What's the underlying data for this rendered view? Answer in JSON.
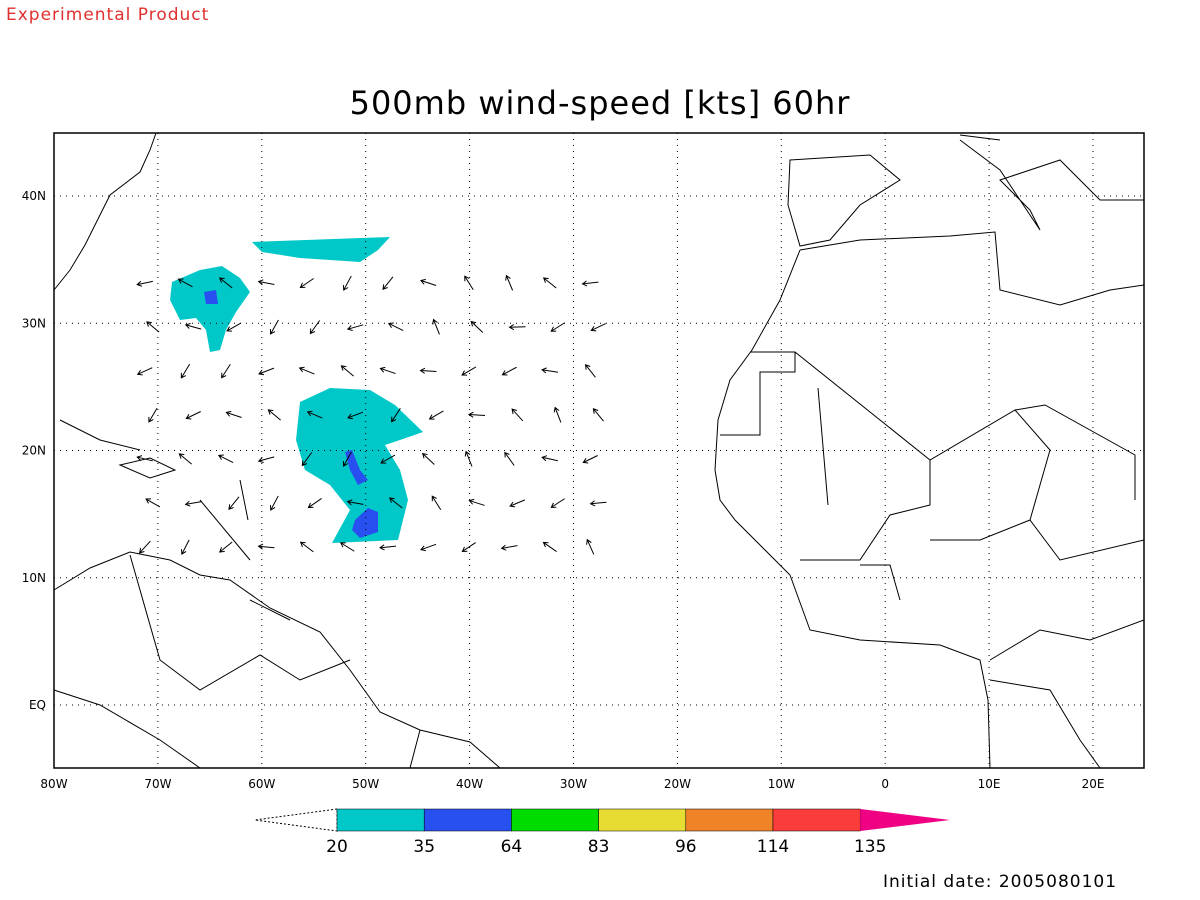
{
  "header": {
    "note": "Experimental Product"
  },
  "title": "500mb wind-speed [kts] 60hr",
  "axes": {
    "x_labels": [
      "80W",
      "70W",
      "60W",
      "50W",
      "40W",
      "30W",
      "20W",
      "10W",
      "0",
      "10E",
      "20E"
    ],
    "y_labels": [
      "40N",
      "30N",
      "20N",
      "10N",
      "EQ"
    ]
  },
  "colorbar": {
    "labels": [
      "20",
      "35",
      "64",
      "83",
      "96",
      "114",
      "135"
    ],
    "colors": [
      "#00c8c8",
      "#2850f0",
      "#00dc00",
      "#e6dc32",
      "#f08228",
      "#fa3c3c",
      "#f00082"
    ]
  },
  "footer": {
    "initial_date": "Initial date: 2005080101"
  }
}
